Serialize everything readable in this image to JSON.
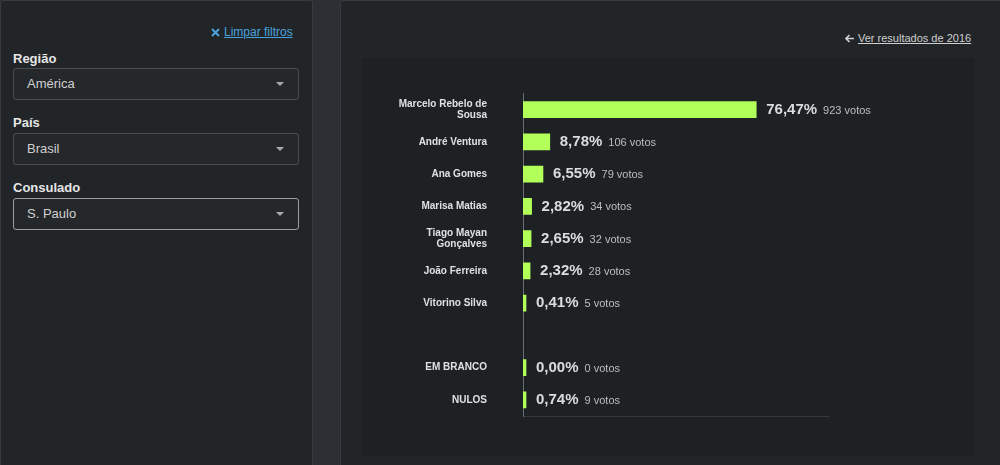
{
  "filters": {
    "clear": "Limpar filtros",
    "fields": [
      {
        "label": "Região",
        "value": "América"
      },
      {
        "label": "País",
        "value": "Brasil"
      },
      {
        "label": "Consulado",
        "value": "S. Paulo"
      }
    ]
  },
  "link": "Ver resultados de 2016",
  "chart_data": {
    "type": "bar",
    "orientation": "horizontal",
    "categories": [
      "Marcelo Rebelo de Sousa",
      "André Ventura",
      "Ana Gomes",
      "Marisa Matias",
      "Tiago Mayan Gonçalves",
      "João Ferreira",
      "Vitorino Silva",
      null,
      "EM BRANCO",
      "NULOS"
    ],
    "values": [
      76.47,
      8.78,
      6.55,
      2.82,
      2.65,
      2.32,
      0.41,
      null,
      0.0,
      0.74
    ],
    "value_labels": [
      "76,47%",
      "8,78%",
      "6,55%",
      "2,82%",
      "2,65%",
      "2,32%",
      "0,41%",
      null,
      "0,00%",
      "0,74%"
    ],
    "vote_labels": [
      "923 votos",
      "106 votos",
      "79 votos",
      "34 votos",
      "32 votos",
      "28 votos",
      "5 votos",
      null,
      "0 votos",
      "9 votos"
    ],
    "color": "#b2ff59",
    "xlim": [
      0,
      100
    ],
    "grid": false,
    "tick_labels": "y",
    "data_labels": true
  }
}
